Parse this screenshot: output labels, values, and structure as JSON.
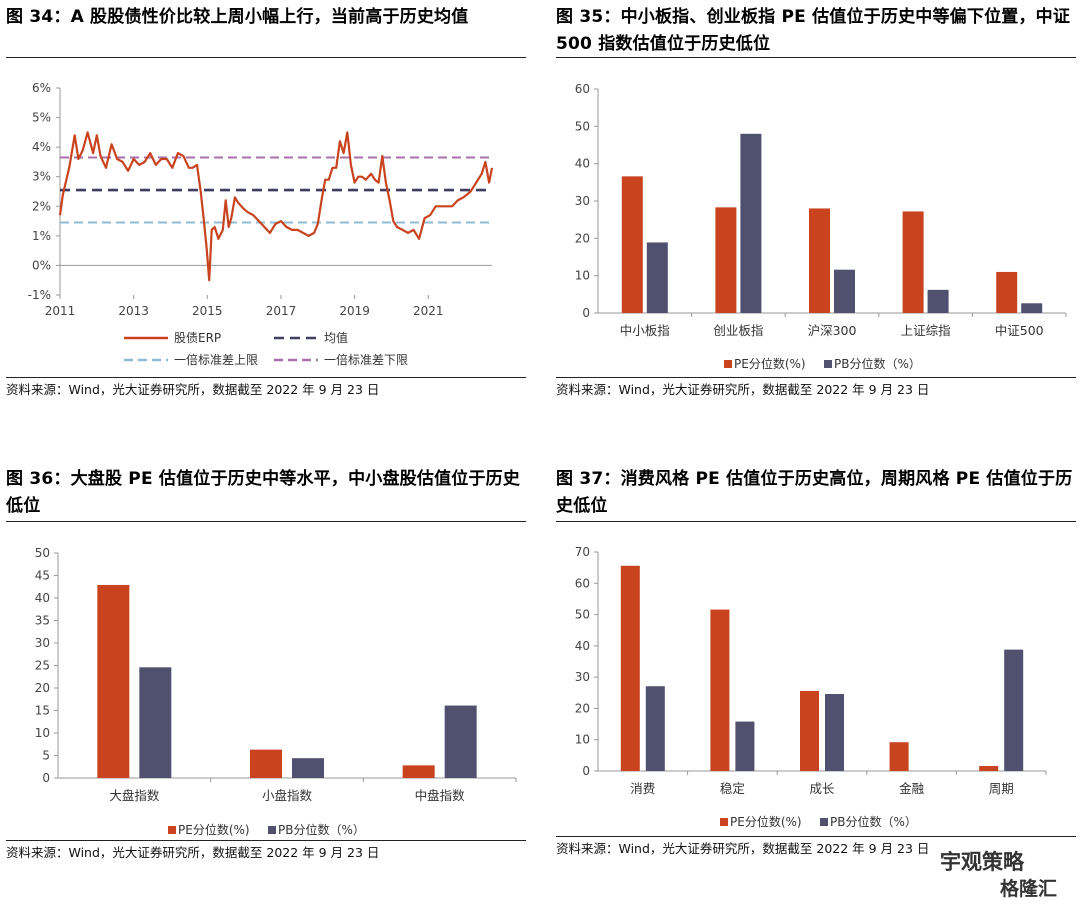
{
  "panels": [
    {
      "title": "图 34：A 股股债性价比较上周小幅上行，当前高于历史均值",
      "source": "资料来源：Wind，光大证券研究所，数据截至 2022 年 9 月 23 日"
    },
    {
      "title": "图 35：中小板指、创业板指 PE 估值位于历史中等偏下位置，中证 500 指数估值位于历史低位",
      "source": "资料来源：Wind，光大证券研究所，数据截至 2022 年 9 月 23 日"
    },
    {
      "title": "图 36：大盘股 PE 估值位于历史中等水平，中小盘股估值位于历史低位",
      "source": "资料来源：Wind，光大证券研究所，数据截至 2022 年 9 月 23 日"
    },
    {
      "title": "图 37：消费风格 PE 估值位于历史高位，周期风格 PE 估值位于历史低位",
      "source": "资料来源：Wind，光大证券研究所，数据截至 2022 年 9 月 23 日"
    }
  ],
  "colors": {
    "pe": "#c9431f",
    "pb": "#50506f",
    "erp": "#c9431f",
    "mean": "#3f3f63",
    "upper": "#8fbcd2",
    "lower": "#a870a8"
  },
  "watermark": {
    "line1": "宇观策略",
    "line2": "格隆汇"
  },
  "chart_data": [
    {
      "type": "line",
      "xlim": [
        2011,
        2022.73
      ],
      "ylim": [
        -1,
        6
      ],
      "y_tick_labels": [
        "-1%",
        "0%",
        "1%",
        "2%",
        "3%",
        "4%",
        "5%",
        "6%"
      ],
      "x_tick_labels": [
        "2011",
        "2013",
        "2015",
        "2017",
        "2019",
        "2021"
      ],
      "erp": {
        "name": "股债ERP",
        "x": [
          2011.0,
          2011.08,
          2011.25,
          2011.4,
          2011.5,
          2011.62,
          2011.75,
          2011.9,
          2012.0,
          2012.1,
          2012.25,
          2012.4,
          2012.55,
          2012.7,
          2012.85,
          2013.0,
          2013.15,
          2013.3,
          2013.45,
          2013.6,
          2013.75,
          2013.9,
          2014.05,
          2014.2,
          2014.35,
          2014.5,
          2014.6,
          2014.72,
          2014.82,
          2014.9,
          2014.98,
          2015.05,
          2015.12,
          2015.2,
          2015.3,
          2015.42,
          2015.5,
          2015.58,
          2015.65,
          2015.75,
          2015.85,
          2016.0,
          2016.1,
          2016.25,
          2016.4,
          2016.55,
          2016.7,
          2016.85,
          2017.0,
          2017.15,
          2017.3,
          2017.45,
          2017.6,
          2017.75,
          2017.9,
          2018.0,
          2018.1,
          2018.2,
          2018.3,
          2018.4,
          2018.5,
          2018.6,
          2018.7,
          2018.8,
          2018.9,
          2019.0,
          2019.1,
          2019.2,
          2019.3,
          2019.45,
          2019.55,
          2019.65,
          2019.75,
          2019.85,
          2019.95,
          2020.05,
          2020.15,
          2020.3,
          2020.45,
          2020.6,
          2020.75,
          2020.9,
          2021.05,
          2021.2,
          2021.35,
          2021.5,
          2021.65,
          2021.8,
          2021.95,
          2022.05,
          2022.15,
          2022.25,
          2022.35,
          2022.45,
          2022.55,
          2022.65,
          2022.73
        ],
        "y": [
          1.7,
          2.4,
          3.3,
          4.4,
          3.6,
          3.9,
          4.5,
          3.8,
          4.4,
          3.7,
          3.3,
          4.1,
          3.6,
          3.5,
          3.2,
          3.6,
          3.4,
          3.5,
          3.8,
          3.4,
          3.6,
          3.6,
          3.3,
          3.8,
          3.7,
          3.3,
          3.3,
          3.4,
          2.5,
          1.6,
          0.6,
          -0.5,
          1.2,
          1.3,
          0.9,
          1.2,
          2.2,
          1.3,
          1.6,
          2.3,
          2.1,
          1.9,
          1.8,
          1.7,
          1.5,
          1.3,
          1.1,
          1.4,
          1.5,
          1.3,
          1.2,
          1.2,
          1.1,
          1.0,
          1.1,
          1.4,
          2.2,
          2.9,
          2.9,
          3.3,
          3.3,
          4.2,
          3.8,
          4.5,
          3.4,
          2.8,
          3.0,
          3.0,
          2.9,
          3.1,
          2.9,
          2.8,
          3.7,
          2.8,
          2.2,
          1.5,
          1.3,
          1.2,
          1.1,
          1.2,
          0.9,
          1.6,
          1.7,
          2.0,
          2.0,
          2.0,
          2.0,
          2.2,
          2.3,
          2.4,
          2.5,
          2.7,
          2.9,
          3.1,
          3.5,
          2.8,
          3.3
        ]
      },
      "mean": {
        "name": "均值",
        "value": 2.55
      },
      "upper": {
        "name": "一倍标准差上限",
        "value": 1.45
      },
      "lower": {
        "name": "一倍标准差下限",
        "value": 3.65
      },
      "legend": [
        "股债ERP",
        "均值",
        "一倍标准差上限",
        "一倍标准差下限"
      ]
    },
    {
      "type": "bar",
      "categories": [
        "中小板指",
        "创业板指",
        "沪深300",
        "上证综指",
        "中证500"
      ],
      "series": [
        {
          "name": "PE分位数(%)",
          "values": [
            36.6,
            28.3,
            28.0,
            27.2,
            11.0
          ]
        },
        {
          "name": "PB分位数（%）",
          "values": [
            18.9,
            48.0,
            11.6,
            6.2,
            2.6
          ]
        }
      ],
      "ylim": [
        0,
        60
      ],
      "y_ticks": [
        0,
        10,
        20,
        30,
        40,
        50,
        60
      ]
    },
    {
      "type": "bar",
      "categories": [
        "大盘指数",
        "小盘指数",
        "中盘指数"
      ],
      "series": [
        {
          "name": "PE分位数(%)",
          "values": [
            42.9,
            6.3,
            2.8
          ]
        },
        {
          "name": "PB分位数（%）",
          "values": [
            24.6,
            4.4,
            16.1
          ]
        }
      ],
      "ylim": [
        0,
        50
      ],
      "y_ticks": [
        0,
        5,
        10,
        15,
        20,
        25,
        30,
        35,
        40,
        45,
        50
      ]
    },
    {
      "type": "bar",
      "categories": [
        "消费",
        "稳定",
        "成长",
        "金融",
        "周期"
      ],
      "series": [
        {
          "name": "PE分位数(%)",
          "values": [
            65.6,
            51.6,
            25.6,
            9.2,
            1.6
          ]
        },
        {
          "name": "PB分位数（%）",
          "values": [
            27.1,
            15.8,
            24.6,
            0,
            38.8
          ]
        }
      ],
      "ylim": [
        0,
        70
      ],
      "y_ticks": [
        0,
        10,
        20,
        30,
        40,
        50,
        60,
        70
      ]
    }
  ]
}
